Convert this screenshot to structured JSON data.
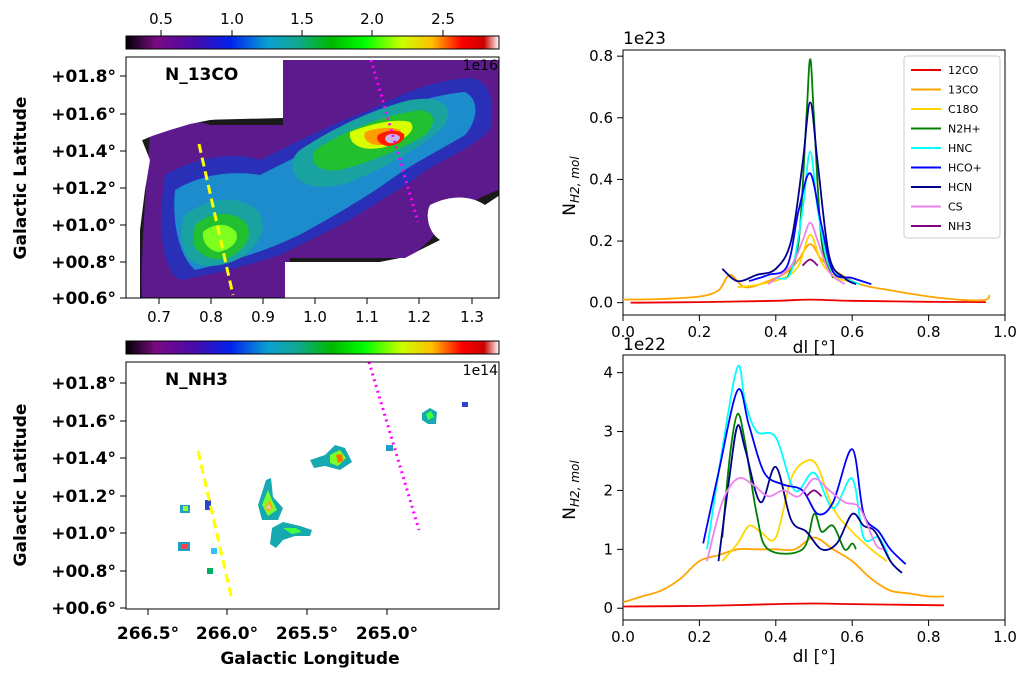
{
  "chart_data": [
    {
      "type": "heatmap",
      "panel_label": "N_13CO",
      "colorbar_ticks": [
        "0.5",
        "1.0",
        "1.5",
        "2.0",
        "2.5"
      ],
      "colorbar_multiplier": "1e16",
      "colorbar_range": [
        0.2,
        2.85
      ],
      "secondary_xaxis_ticks": [
        "0.7",
        "0.8",
        "0.9",
        "1.0",
        "1.1",
        "1.2",
        "1.3"
      ],
      "yaxis_ticks": [
        "+00.6°",
        "+00.8°",
        "+01.0°",
        "+01.2°",
        "+01.4°",
        "+01.6°",
        "+01.8°"
      ],
      "ylabel": "Galactic Latitude",
      "yrange": [
        0.55,
        1.95
      ],
      "xrange": [
        266.7,
        264.6
      ],
      "overlays": [
        {
          "color": "#ffff00",
          "style": "dashed",
          "from": [
            266.2,
            1.42
          ],
          "to": [
            266.0,
            0.62
          ]
        },
        {
          "color": "#ff00ff",
          "style": "dotted",
          "from": [
            265.3,
            1.9
          ],
          "to": [
            265.0,
            1.0
          ]
        }
      ]
    },
    {
      "type": "line",
      "exponent": "1e23",
      "xlabel": "dl [°]",
      "ylabel": "N_H2,mol",
      "xlim": [
        0.0,
        1.0
      ],
      "ylim": [
        -0.04,
        0.82
      ],
      "xticks": [
        "0.0",
        "0.2",
        "0.4",
        "0.6",
        "0.8",
        "1.0"
      ],
      "yticks": [
        "0.0",
        "0.2",
        "0.4",
        "0.6",
        "0.8"
      ],
      "legend_position": "upper right",
      "series": [
        {
          "name": "12CO",
          "color": "#ee0000",
          "x": [
            0.02,
            0.2,
            0.4,
            0.49,
            0.6,
            0.8,
            0.95
          ],
          "y": [
            0.0,
            0.002,
            0.006,
            0.01,
            0.006,
            0.003,
            0.002
          ]
        },
        {
          "name": "13CO",
          "color": "#ffa500",
          "x": [
            0.0,
            0.1,
            0.2,
            0.25,
            0.28,
            0.32,
            0.38,
            0.43,
            0.46,
            0.49,
            0.52,
            0.56,
            0.62,
            0.7,
            0.8,
            0.9,
            0.95,
            0.96
          ],
          "y": [
            0.01,
            0.012,
            0.02,
            0.04,
            0.09,
            0.05,
            0.07,
            0.1,
            0.14,
            0.19,
            0.14,
            0.1,
            0.06,
            0.04,
            0.02,
            0.008,
            0.01,
            0.025
          ]
        },
        {
          "name": "C18O",
          "color": "#ffd700",
          "x": [
            0.3,
            0.36,
            0.42,
            0.46,
            0.49,
            0.52,
            0.56,
            0.6
          ],
          "y": [
            0.05,
            0.06,
            0.08,
            0.12,
            0.22,
            0.13,
            0.08,
            0.07
          ]
        },
        {
          "name": "N2H+",
          "color": "#008000",
          "x": [
            0.43,
            0.46,
            0.48,
            0.49,
            0.5,
            0.52,
            0.55
          ],
          "y": [
            0.08,
            0.2,
            0.6,
            0.79,
            0.6,
            0.2,
            0.08
          ]
        },
        {
          "name": "HNC",
          "color": "#00ffff",
          "x": [
            0.4,
            0.44,
            0.47,
            0.49,
            0.51,
            0.54,
            0.58,
            0.62
          ],
          "y": [
            0.08,
            0.1,
            0.3,
            0.49,
            0.3,
            0.12,
            0.08,
            0.06
          ]
        },
        {
          "name": "HCO+",
          "color": "#0000ff",
          "x": [
            0.33,
            0.38,
            0.43,
            0.46,
            0.49,
            0.52,
            0.55,
            0.6,
            0.65
          ],
          "y": [
            0.07,
            0.09,
            0.12,
            0.3,
            0.42,
            0.25,
            0.1,
            0.08,
            0.06
          ]
        },
        {
          "name": "HCN",
          "color": "#00008b",
          "x": [
            0.26,
            0.3,
            0.35,
            0.4,
            0.44,
            0.47,
            0.49,
            0.51,
            0.54,
            0.58,
            0.61
          ],
          "y": [
            0.11,
            0.07,
            0.09,
            0.11,
            0.2,
            0.45,
            0.65,
            0.45,
            0.15,
            0.08,
            0.06
          ]
        },
        {
          "name": "CS",
          "color": "#ee82ee",
          "x": [
            0.38,
            0.44,
            0.47,
            0.49,
            0.51,
            0.54,
            0.58
          ],
          "y": [
            0.06,
            0.12,
            0.2,
            0.26,
            0.2,
            0.1,
            0.06
          ]
        },
        {
          "name": "NH3",
          "color": "#800080",
          "x": [
            0.47,
            0.49,
            0.51
          ],
          "y": [
            0.12,
            0.14,
            0.12
          ]
        }
      ]
    },
    {
      "type": "heatmap",
      "panel_label": "N_NH3",
      "colorbar_multiplier": "1e14",
      "yaxis_ticks": [
        "+00.6°",
        "+00.8°",
        "+01.0°",
        "+01.2°",
        "+01.4°",
        "+01.6°",
        "+01.8°"
      ],
      "xaxis_ticks": [
        "266.5°",
        "266.0°",
        "265.5°",
        "265.0°"
      ],
      "xlabel": "Galactic Longitude",
      "ylabel": "Galactic Latitude",
      "yrange": [
        0.55,
        1.95
      ],
      "xrange": [
        266.7,
        264.6
      ],
      "overlays": [
        {
          "color": "#ffff00",
          "style": "dashed",
          "from": [
            266.2,
            1.42
          ],
          "to": [
            266.0,
            0.62
          ]
        },
        {
          "color": "#ff00ff",
          "style": "dotted",
          "from": [
            265.3,
            1.9
          ],
          "to": [
            265.0,
            1.0
          ]
        }
      ]
    },
    {
      "type": "line",
      "exponent": "1e22",
      "xlabel": "dl [°]",
      "ylabel": "N_H2,mol",
      "xlim": [
        0.0,
        1.0
      ],
      "ylim": [
        -0.2,
        4.3
      ],
      "xticks": [
        "0.0",
        "0.2",
        "0.4",
        "0.6",
        "0.8",
        "1.0"
      ],
      "yticks": [
        "0",
        "1",
        "2",
        "3",
        "4"
      ],
      "series": [
        {
          "name": "12CO",
          "color": "#ee0000",
          "x": [
            0.0,
            0.2,
            0.4,
            0.5,
            0.6,
            0.84
          ],
          "y": [
            0.03,
            0.04,
            0.07,
            0.08,
            0.07,
            0.05
          ]
        },
        {
          "name": "13CO",
          "color": "#ffa500",
          "x": [
            0.0,
            0.05,
            0.1,
            0.15,
            0.2,
            0.25,
            0.3,
            0.35,
            0.4,
            0.45,
            0.5,
            0.55,
            0.6,
            0.65,
            0.7,
            0.75,
            0.8,
            0.84
          ],
          "y": [
            0.1,
            0.2,
            0.3,
            0.5,
            0.8,
            0.9,
            1.0,
            1.0,
            1.0,
            1.0,
            1.2,
            1.0,
            0.8,
            0.5,
            0.3,
            0.25,
            0.2,
            0.2
          ]
        },
        {
          "name": "C18O",
          "color": "#ffd700",
          "x": [
            0.26,
            0.3,
            0.33,
            0.36,
            0.4,
            0.44,
            0.48,
            0.51,
            0.55,
            0.6,
            0.65,
            0.69
          ],
          "y": [
            0.8,
            1.1,
            1.4,
            1.3,
            1.2,
            2.2,
            2.5,
            2.4,
            1.7,
            1.3,
            1.0,
            0.8
          ]
        },
        {
          "name": "N2H+",
          "color": "#008000",
          "x": [
            0.26,
            0.28,
            0.3,
            0.32,
            0.35,
            0.38,
            0.47,
            0.5,
            0.52,
            0.55,
            0.58,
            0.6,
            0.61
          ],
          "y": [
            1.2,
            2.6,
            3.3,
            2.8,
            1.6,
            1.0,
            1.0,
            1.6,
            1.3,
            1.4,
            1.0,
            1.1,
            1.0
          ]
        },
        {
          "name": "HNC",
          "color": "#00ffff",
          "x": [
            0.22,
            0.26,
            0.3,
            0.32,
            0.35,
            0.4,
            0.45,
            0.5,
            0.55,
            0.6,
            0.63,
            0.67,
            0.7
          ],
          "y": [
            1.0,
            2.7,
            4.1,
            3.5,
            3.0,
            2.9,
            2.0,
            2.3,
            1.7,
            2.2,
            1.2,
            1.2,
            0.8
          ]
        },
        {
          "name": "HCO+",
          "color": "#0000ff",
          "x": [
            0.21,
            0.25,
            0.3,
            0.33,
            0.37,
            0.42,
            0.47,
            0.51,
            0.55,
            0.6,
            0.63,
            0.67,
            0.7,
            0.74
          ],
          "y": [
            1.1,
            2.3,
            3.7,
            3.1,
            2.3,
            2.1,
            2.0,
            1.6,
            1.8,
            2.7,
            1.6,
            1.3,
            1.0,
            0.75
          ]
        },
        {
          "name": "HCN",
          "color": "#00008b",
          "x": [
            0.25,
            0.28,
            0.3,
            0.32,
            0.36,
            0.4,
            0.44,
            0.48,
            0.52,
            0.56,
            0.6,
            0.63,
            0.66,
            0.7,
            0.73
          ],
          "y": [
            0.8,
            2.3,
            3.1,
            2.7,
            1.8,
            2.4,
            1.5,
            1.3,
            1.0,
            1.1,
            1.6,
            1.4,
            1.3,
            0.8,
            0.6
          ]
        },
        {
          "name": "CS",
          "color": "#ee82ee",
          "x": [
            0.22,
            0.26,
            0.3,
            0.34,
            0.38,
            0.42,
            0.46,
            0.5,
            0.54,
            0.58,
            0.62,
            0.66,
            0.68
          ],
          "y": [
            0.8,
            1.8,
            2.2,
            2.1,
            1.9,
            2.0,
            1.9,
            2.2,
            2.0,
            1.8,
            1.7,
            1.1,
            1.0
          ]
        },
        {
          "name": "NH3",
          "color": "#800080",
          "x": [
            0.48,
            0.5,
            0.52
          ],
          "y": [
            1.9,
            2.0,
            1.9
          ]
        }
      ]
    }
  ]
}
